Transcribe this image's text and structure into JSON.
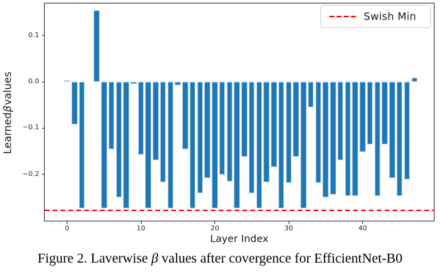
{
  "figure": {
    "legend": {
      "label": "Swish Min"
    },
    "xlabel": "Layer Index",
    "ylabel_prefix": "Learned ",
    "ylabel_beta": "β",
    "ylabel_suffix": " values",
    "caption_prefix": "Figure 2. Laverwise ",
    "caption_beta": "β",
    "caption_suffix": " values after covergence for EfficientNet-B0",
    "colors": {
      "bar_fill": "#1f77b4",
      "bar_edge": "#a8cbe8",
      "swish_line": "#ff0000"
    }
  },
  "chart_data": {
    "type": "bar",
    "title": "",
    "xlabel": "Layer Index",
    "ylabel": "Learned β values",
    "x": [
      0,
      1,
      2,
      3,
      4,
      5,
      6,
      7,
      8,
      9,
      10,
      11,
      12,
      13,
      14,
      15,
      16,
      17,
      18,
      19,
      20,
      21,
      22,
      23,
      24,
      25,
      26,
      27,
      28,
      29,
      30,
      31,
      32,
      33,
      34,
      35,
      36,
      37,
      38,
      39,
      40,
      41,
      42,
      43,
      44,
      45,
      46,
      47
    ],
    "values": [
      0.003,
      -0.092,
      -0.274,
      0.0,
      0.155,
      -0.274,
      -0.145,
      -0.25,
      -0.274,
      -0.004,
      -0.157,
      -0.274,
      -0.17,
      -0.217,
      -0.274,
      -0.008,
      -0.145,
      -0.274,
      -0.241,
      -0.208,
      -0.274,
      -0.2,
      -0.215,
      -0.274,
      -0.162,
      -0.24,
      -0.274,
      -0.217,
      -0.184,
      -0.274,
      -0.218,
      -0.162,
      -0.274,
      -0.055,
      -0.218,
      -0.249,
      -0.243,
      -0.17,
      -0.246,
      -0.246,
      -0.151,
      -0.135,
      -0.246,
      -0.135,
      -0.208,
      -0.246,
      -0.211,
      0.009
    ],
    "swish_min": -0.2785,
    "legend": [
      "Swish Min"
    ],
    "legend_position": "upper right",
    "grid": false,
    "xlim": [
      -3.1,
      50.2
    ],
    "ylim": [
      -0.302,
      0.171
    ],
    "xticks": [
      0,
      10,
      20,
      30,
      40
    ],
    "xticklabels": [
      "0",
      "10",
      "20",
      "30",
      "40"
    ],
    "yticks": [
      0.1,
      0.0,
      -0.1,
      -0.2
    ],
    "yticklabels": [
      "0.1",
      "0.0",
      "−0.1",
      "−0.2"
    ]
  }
}
